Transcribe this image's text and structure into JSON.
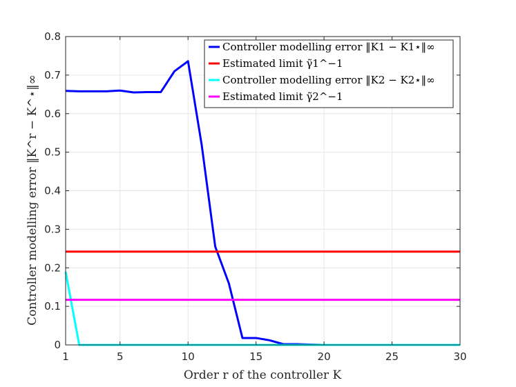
{
  "chart_data": {
    "type": "line",
    "xlabel": "Order r of the controller K",
    "ylabel": "Controller modelling error ‖K^r − K^⋆‖∞",
    "xlim": [
      1,
      30
    ],
    "ylim": [
      0,
      0.8
    ],
    "xticks": [
      1,
      5,
      10,
      15,
      20,
      25,
      30
    ],
    "yticks": [
      0,
      0.1,
      0.2,
      0.3,
      0.4,
      0.5,
      0.6,
      0.7,
      0.8
    ],
    "xtick_labels": [
      "1",
      "5",
      "10",
      "15",
      "20",
      "25",
      "30"
    ],
    "ytick_labels": [
      "0",
      "0.1",
      "0.2",
      "0.3",
      "0.4",
      "0.5",
      "0.6",
      "0.7",
      "0.8"
    ],
    "grid": true,
    "legend_position": "top-right",
    "series": [
      {
        "name": "Controller modelling error ‖K1 − K1⋆‖∞",
        "color": "#0000ff",
        "x": [
          1,
          2,
          3,
          4,
          5,
          6,
          7,
          8,
          9,
          10,
          11,
          12,
          13,
          14,
          15,
          16,
          17,
          18,
          19,
          20,
          21,
          22,
          23,
          24,
          25,
          26,
          27,
          28,
          29,
          30
        ],
        "y": [
          0.659,
          0.658,
          0.658,
          0.658,
          0.66,
          0.655,
          0.656,
          0.656,
          0.71,
          0.736,
          0.52,
          0.255,
          0.16,
          0.018,
          0.018,
          0.012,
          0.002,
          0.002,
          0.001,
          0.0,
          0.0,
          0.0,
          0.0,
          0.0,
          0.0,
          0.0,
          0.0,
          0.0,
          0.0,
          0.0
        ]
      },
      {
        "name": "Estimated limit γ̃1^−1",
        "color": "#ff0000",
        "x": [
          1,
          30
        ],
        "y": [
          0.242,
          0.242
        ]
      },
      {
        "name": "Controller modelling error ‖K2 − K2⋆‖∞",
        "color": "#00ffff",
        "x": [
          1,
          2,
          3,
          4,
          5,
          6,
          7,
          8,
          9,
          10,
          11,
          12,
          13,
          14,
          15,
          16,
          17,
          18,
          19,
          20,
          21,
          22,
          23,
          24,
          25,
          26,
          27,
          28,
          29,
          30
        ],
        "y": [
          0.19,
          0.0,
          0.0,
          0.0,
          0.0,
          0.0,
          0.0,
          0.0,
          0.0,
          0.0,
          0.0,
          0.0,
          0.0,
          0.0,
          0.0,
          0.0,
          0.0,
          0.0,
          0.0,
          0.0,
          0.0,
          0.0,
          0.0,
          0.0,
          0.0,
          0.0,
          0.0,
          0.0,
          0.0,
          0.0
        ]
      },
      {
        "name": "Estimated limit γ̃2^−1",
        "color": "#ff00ff",
        "x": [
          1,
          30
        ],
        "y": [
          0.117,
          0.117
        ]
      }
    ]
  }
}
